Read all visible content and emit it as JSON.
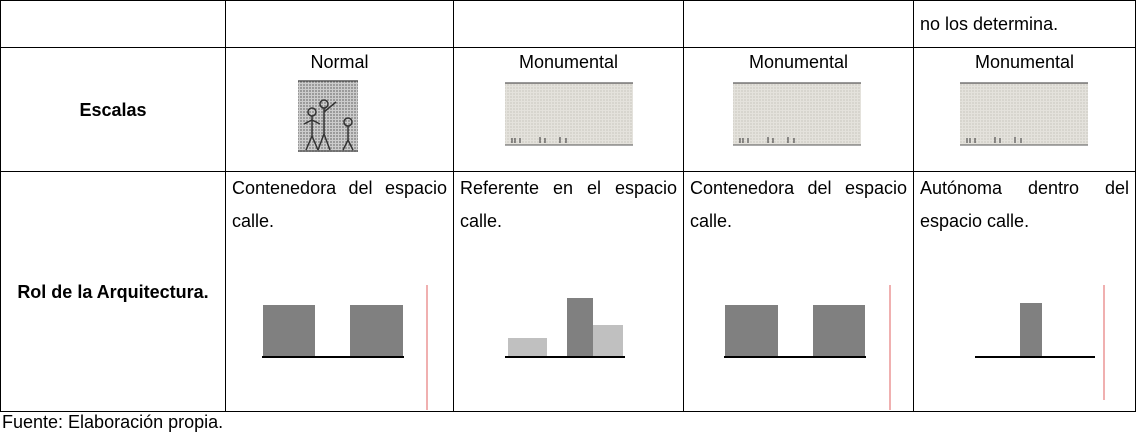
{
  "table": {
    "continued_text": "no los determina.",
    "rows": [
      {
        "label": "Escalas",
        "cells": [
          "Normal",
          "Monumental",
          "Monumental",
          "Monumental"
        ]
      },
      {
        "label": "Rol de la Arquitectura.",
        "cells": [
          "Contenedora del espacio calle.",
          "Referente en el espacio calle.",
          "Contenedora del espacio calle.",
          "Autónoma dentro del espacio calle."
        ]
      }
    ]
  },
  "source": "Fuente: Elaboración propia."
}
